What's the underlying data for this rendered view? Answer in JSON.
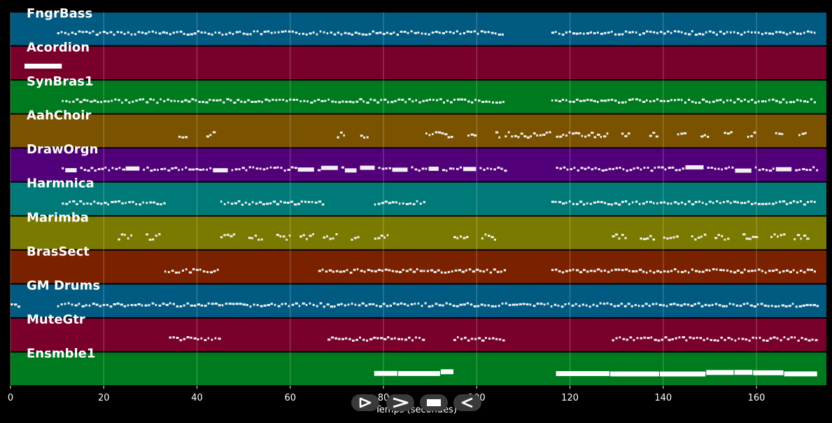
{
  "chart_data": {
    "type": "piano-roll",
    "xlabel": "Temps (secondes)",
    "xlim": [
      0,
      175
    ],
    "xticks": [
      0,
      20,
      40,
      60,
      80,
      100,
      120,
      140,
      160
    ],
    "grid": true,
    "tracks": [
      {
        "name": "FngrBass",
        "color": "#005a82",
        "segments": [
          [
            10,
            106
          ],
          [
            116,
            173
          ]
        ],
        "style": "dense-small"
      },
      {
        "name": "Acordion",
        "color": "#7a002c",
        "segments": [
          [
            3,
            11
          ]
        ],
        "style": "thick"
      },
      {
        "name": "SynBras1",
        "color": "#007a1e",
        "segments": [
          [
            11,
            89
          ],
          [
            89,
            106
          ],
          [
            116,
            173
          ]
        ],
        "style": "dense-small"
      },
      {
        "name": "AahChoir",
        "color": "#7a5200",
        "segments": [
          [
            36,
            38
          ],
          [
            42,
            44
          ],
          [
            70,
            72
          ],
          [
            75,
            77
          ],
          [
            89,
            95
          ],
          [
            98,
            100
          ],
          [
            104,
            105
          ],
          [
            106,
            116
          ],
          [
            117,
            128
          ],
          [
            131,
            133
          ],
          [
            137,
            139
          ],
          [
            143,
            145
          ],
          [
            148,
            150
          ],
          [
            153,
            155
          ],
          [
            158,
            160
          ],
          [
            164,
            166
          ],
          [
            169,
            171
          ]
        ],
        "style": "sparse"
      },
      {
        "name": "DrawOrgn",
        "color": "#52007a",
        "segments": [
          [
            11,
            106
          ],
          [
            117,
            173
          ]
        ],
        "style": "mixed"
      },
      {
        "name": "Harmnica",
        "color": "#007a78",
        "segments": [
          [
            11,
            33
          ],
          [
            45,
            67
          ],
          [
            78,
            89
          ],
          [
            116,
            173
          ]
        ],
        "style": "dense-small"
      },
      {
        "name": "Marimba",
        "color": "#7a7a00",
        "segments": [
          [
            23,
            26
          ],
          [
            29,
            32
          ],
          [
            45,
            48
          ],
          [
            51,
            54
          ],
          [
            57,
            60
          ],
          [
            62,
            65
          ],
          [
            67,
            70
          ],
          [
            73,
            75
          ],
          [
            78,
            81
          ],
          [
            95,
            98
          ],
          [
            101,
            104
          ],
          [
            129,
            132
          ],
          [
            135,
            138
          ],
          [
            140,
            143
          ],
          [
            146,
            149
          ],
          [
            151,
            154
          ],
          [
            157,
            160
          ],
          [
            163,
            166
          ],
          [
            168,
            171
          ]
        ],
        "style": "sparse"
      },
      {
        "name": "BrasSect",
        "color": "#7a2200",
        "segments": [
          [
            33,
            45
          ],
          [
            66,
            106
          ],
          [
            116,
            173
          ]
        ],
        "style": "dense-small"
      },
      {
        "name": "GM Drums",
        "color": "#005a82",
        "segments": [
          [
            0,
            2
          ],
          [
            10,
            173
          ]
        ],
        "style": "dense-small"
      },
      {
        "name": "MuteGtr",
        "color": "#7a002c",
        "segments": [
          [
            34,
            45
          ],
          [
            68,
            89
          ],
          [
            95,
            106
          ],
          [
            129,
            173
          ]
        ],
        "style": "dense-small"
      },
      {
        "name": "Ensmble1",
        "color": "#007a1e",
        "segments": [
          [
            78,
            95
          ],
          [
            117,
            173
          ]
        ],
        "style": "thick"
      }
    ]
  },
  "controls": {
    "play_label": "play",
    "fast_forward_label": "fast-forward",
    "stop_label": "stop",
    "rewind_label": "rewind"
  }
}
